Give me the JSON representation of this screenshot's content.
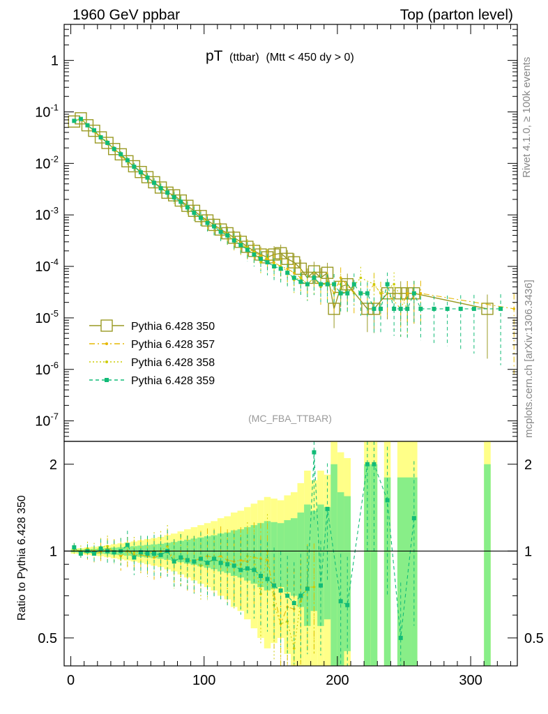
{
  "header": {
    "left": "1960 GeV ppbar",
    "right": "Top (parton level)"
  },
  "side_labels": {
    "rivet": "Rivet 4.1.0, ≥ 100k events",
    "source": "mcplots.cern.ch [arXiv:1306.3436]"
  },
  "colors": {
    "s350": "#999922",
    "s357": "#e6b800",
    "s358": "#cccc00",
    "s359": "#11bb77",
    "band_yellow": "#ffff88",
    "band_green": "#88ee88"
  },
  "chart_data": [
    {
      "type": "line",
      "title": "pT",
      "title_sub": "(ttbar)",
      "title_extra": "(Mtt < 450 dy > 0)",
      "watermark": "(MC_FBA_TTBAR)",
      "yscale": "log",
      "ylim": [
        4e-08,
        5
      ],
      "xlim": [
        -5,
        335
      ],
      "ytick_labels": [
        {
          "value": 1,
          "label": "1"
        },
        {
          "value": 0.1,
          "label": "10^-1"
        },
        {
          "value": 0.01,
          "label": "10^-2"
        },
        {
          "value": 0.001,
          "label": "10^-3"
        },
        {
          "value": 0.0001,
          "label": "10^-4"
        },
        {
          "value": 1e-05,
          "label": "10^-5"
        },
        {
          "value": 1e-06,
          "label": "10^-6"
        },
        {
          "value": 1e-07,
          "label": "10^-7"
        }
      ],
      "legend_position": "bottom-left",
      "series": [
        {
          "name": "Pythia 6.428 350",
          "key": "s350",
          "marker": "open-square",
          "x": [
            2.5,
            7.5,
            12.5,
            17.5,
            22.5,
            27.5,
            32.5,
            37.5,
            42.5,
            47.5,
            52.5,
            57.5,
            62.5,
            67.5,
            72.5,
            77.5,
            82.5,
            87.5,
            92.5,
            97.5,
            102.5,
            107.5,
            112.5,
            117.5,
            122.5,
            127.5,
            132.5,
            137.5,
            142.5,
            147.5,
            152.5,
            157.5,
            162.5,
            167.5,
            172.5,
            177.5,
            182.5,
            187.5,
            192.5,
            197.5,
            202.5,
            207.5,
            222.5,
            227.5,
            237.5,
            247.5,
            252.5,
            257.5,
            312.5
          ],
          "y": [
            0.065,
            0.075,
            0.055,
            0.043,
            0.032,
            0.025,
            0.019,
            0.015,
            0.011,
            0.0088,
            0.0068,
            0.0054,
            0.0043,
            0.0034,
            0.0027,
            0.0024,
            0.0019,
            0.0015,
            0.0012,
            0.00095,
            0.00078,
            0.00064,
            0.00052,
            0.00044,
            0.00036,
            0.0003,
            0.00024,
            0.0002,
            0.00017,
            0.00015,
            0.00017,
            0.00018,
            0.00014,
            0.00012,
            9e-05,
            6e-05,
            8e-05,
            6e-05,
            7.5e-05,
            1.5e-05,
            4e-05,
            4.5e-05,
            1.5e-05,
            1.5e-05,
            3e-05,
            3e-05,
            3e-05,
            3e-05,
            1.5e-05
          ]
        },
        {
          "name": "Pythia 6.428 357",
          "key": "s357",
          "marker": "dot",
          "x": [
            2.5,
            7.5,
            12.5,
            17.5,
            22.5,
            27.5,
            32.5,
            37.5,
            42.5,
            47.5,
            52.5,
            57.5,
            62.5,
            67.5,
            72.5,
            77.5,
            82.5,
            87.5,
            92.5,
            97.5,
            102.5,
            107.5,
            112.5,
            117.5,
            122.5,
            127.5,
            132.5,
            137.5,
            142.5,
            147.5,
            152.5,
            157.5,
            162.5,
            167.5,
            172.5,
            177.5,
            182.5,
            187.5,
            192.5,
            197.5,
            202.5,
            212.5,
            222.5,
            227.5,
            232.5,
            237.5,
            247.5,
            252.5,
            257.5,
            262.5,
            332.5
          ],
          "y": [
            0.068,
            0.072,
            0.054,
            0.042,
            0.031,
            0.025,
            0.019,
            0.014,
            0.011,
            0.0085,
            0.0066,
            0.0052,
            0.0041,
            0.0033,
            0.0027,
            0.0022,
            0.0018,
            0.0014,
            0.0011,
            0.0009,
            0.00075,
            0.00061,
            0.0005,
            0.00041,
            0.00033,
            0.00028,
            0.00022,
            0.00019,
            0.00016,
            0.00014,
            0.00012,
            0.0001,
            9e-05,
            7.5e-05,
            6e-05,
            4.5e-05,
            6e-05,
            4e-05,
            5e-05,
            3e-05,
            6e-05,
            3e-05,
            3e-05,
            4.5e-05,
            3e-05,
            3e-05,
            1.5e-05,
            3e-05,
            3e-05,
            3e-05,
            1.5e-05
          ]
        },
        {
          "name": "Pythia 6.428 358",
          "key": "s358",
          "marker": "dot",
          "x": [
            2.5,
            7.5,
            12.5,
            17.5,
            22.5,
            27.5,
            32.5,
            37.5,
            42.5,
            47.5,
            52.5,
            57.5,
            62.5,
            67.5,
            72.5,
            77.5,
            82.5,
            87.5,
            92.5,
            97.5,
            102.5,
            107.5,
            112.5,
            117.5,
            122.5,
            127.5,
            132.5,
            137.5,
            142.5,
            147.5,
            152.5,
            157.5,
            162.5,
            167.5,
            172.5,
            177.5,
            182.5,
            187.5,
            192.5,
            202.5,
            207.5,
            217.5,
            227.5,
            232.5,
            242.5,
            252.5
          ],
          "y": [
            0.066,
            0.074,
            0.056,
            0.043,
            0.033,
            0.026,
            0.019,
            0.015,
            0.011,
            0.0087,
            0.0067,
            0.0053,
            0.0043,
            0.0034,
            0.0028,
            0.0022,
            0.0018,
            0.0014,
            0.0011,
            0.00085,
            0.0007,
            0.0006,
            0.00048,
            0.0004,
            0.00032,
            0.00027,
            0.00023,
            0.00019,
            0.00012,
            0.00015,
            0.00011,
            0.0001,
            8e-05,
            5.5e-05,
            6e-05,
            4.5e-05,
            6e-05,
            4.5e-05,
            4.5e-05,
            4.5e-05,
            3e-05,
            6e-05,
            4.5e-05,
            3e-05,
            4.5e-05,
            1.5e-05
          ]
        },
        {
          "name": "Pythia 6.428 359",
          "key": "s359",
          "marker": "filled-square",
          "x": [
            2.5,
            7.5,
            12.5,
            17.5,
            22.5,
            27.5,
            32.5,
            37.5,
            42.5,
            47.5,
            52.5,
            57.5,
            62.5,
            67.5,
            72.5,
            77.5,
            82.5,
            87.5,
            92.5,
            97.5,
            102.5,
            107.5,
            112.5,
            117.5,
            122.5,
            127.5,
            132.5,
            137.5,
            142.5,
            147.5,
            152.5,
            157.5,
            162.5,
            167.5,
            172.5,
            177.5,
            182.5,
            187.5,
            192.5,
            197.5,
            202.5,
            207.5,
            212.5,
            217.5,
            222.5,
            227.5,
            232.5,
            237.5,
            242.5,
            247.5,
            252.5,
            257.5,
            262.5,
            272.5,
            282.5,
            292.5,
            302.5,
            322.5
          ],
          "y": [
            0.067,
            0.073,
            0.055,
            0.044,
            0.032,
            0.025,
            0.019,
            0.015,
            0.0115,
            0.0086,
            0.0067,
            0.0053,
            0.0042,
            0.0033,
            0.0027,
            0.0022,
            0.0018,
            0.0014,
            0.0011,
            0.00088,
            0.0007,
            0.0006,
            0.00047,
            0.0004,
            0.00032,
            0.00026,
            0.00021,
            0.00017,
            0.00014,
            0.00012,
            0.0001,
            9e-05,
            7.5e-05,
            6e-05,
            5e-05,
            4.5e-05,
            6e-05,
            4.5e-05,
            4.5e-05,
            4.5e-05,
            3e-05,
            3e-05,
            4.5e-05,
            3e-05,
            3e-05,
            1.5e-05,
            1.5e-05,
            4.5e-05,
            1.5e-05,
            1.5e-05,
            1.5e-05,
            3e-05,
            1.5e-05,
            1.5e-05,
            1.5e-05,
            1.5e-05,
            1.5e-05,
            1.5e-05
          ]
        }
      ]
    },
    {
      "type": "line",
      "ylabel": "Ratio to Pythia 6.428 350",
      "xlim": [
        -5,
        335
      ],
      "ylim": [
        0.4,
        2.4
      ],
      "yscale": "log",
      "xticks": [
        0,
        100,
        200,
        300
      ],
      "yticks": [
        0.5,
        1,
        2
      ],
      "reference_line": 1,
      "band_x": [
        2.5,
        7.5,
        12.5,
        17.5,
        22.5,
        27.5,
        32.5,
        37.5,
        42.5,
        47.5,
        52.5,
        57.5,
        62.5,
        67.5,
        72.5,
        77.5,
        82.5,
        87.5,
        92.5,
        97.5,
        102.5,
        107.5,
        112.5,
        117.5,
        122.5,
        127.5,
        132.5,
        137.5,
        142.5,
        147.5,
        152.5,
        157.5,
        162.5,
        167.5,
        172.5,
        177.5,
        182.5,
        187.5,
        192.5,
        197.5,
        202.5,
        207.5,
        222.5,
        227.5,
        237.5,
        247.5,
        252.5,
        257.5,
        312.5
      ],
      "band_rel": [
        0.01,
        0.012,
        0.015,
        0.018,
        0.02,
        0.024,
        0.028,
        0.032,
        0.036,
        0.04,
        0.045,
        0.05,
        0.055,
        0.06,
        0.068,
        0.075,
        0.085,
        0.095,
        0.105,
        0.115,
        0.125,
        0.135,
        0.15,
        0.16,
        0.18,
        0.19,
        0.21,
        0.23,
        0.25,
        0.27,
        0.26,
        0.25,
        0.28,
        0.3,
        0.36,
        0.45,
        0.38,
        0.45,
        0.42,
        1.0,
        0.6,
        0.55,
        1.0,
        1.0,
        0.8,
        0.8,
        0.8,
        0.8,
        1.0
      ],
      "series": [
        {
          "name": "Pythia 6.428 357",
          "key": "s357",
          "x": [
            2.5,
            7.5,
            12.5,
            17.5,
            22.5,
            27.5,
            32.5,
            37.5,
            42.5,
            47.5,
            52.5,
            57.5,
            62.5,
            67.5,
            72.5,
            77.5,
            82.5,
            87.5,
            92.5,
            97.5,
            102.5,
            107.5,
            112.5,
            117.5,
            122.5,
            127.5,
            132.5,
            137.5,
            142.5,
            147.5,
            152.5,
            157.5,
            162.5,
            167.5,
            172.5,
            177.5,
            182.5
          ],
          "y": [
            1.03,
            0.98,
            0.99,
            0.98,
            0.99,
            1.02,
            1.0,
            0.96,
            1.0,
            0.97,
            0.97,
            0.96,
            0.95,
            0.97,
            1.0,
            0.92,
            0.95,
            0.93,
            0.92,
            0.95,
            0.96,
            0.95,
            0.96,
            0.93,
            0.92,
            0.93,
            0.92,
            0.95,
            0.94,
            0.93,
            0.71,
            0.56,
            0.64,
            0.63,
            0.67,
            0.75,
            0.75
          ]
        },
        {
          "name": "Pythia 6.428 358",
          "key": "s358",
          "x": [
            2.5,
            7.5,
            12.5,
            17.5,
            22.5,
            27.5,
            32.5,
            37.5,
            42.5,
            47.5,
            52.5,
            57.5,
            62.5,
            67.5,
            72.5,
            77.5,
            82.5,
            87.5,
            92.5,
            97.5,
            102.5,
            107.5,
            112.5,
            117.5,
            122.5,
            127.5,
            132.5,
            137.5,
            142.5,
            147.5,
            152.5,
            157.5,
            162.5,
            167.5,
            172.5,
            177.5,
            182.5
          ],
          "y": [
            1.01,
            1.0,
            1.02,
            1.0,
            1.03,
            1.04,
            1.0,
            1.0,
            1.0,
            0.99,
            0.99,
            0.98,
            1.0,
            1.0,
            1.04,
            0.92,
            0.95,
            0.93,
            0.92,
            0.89,
            0.9,
            0.94,
            0.92,
            0.91,
            0.89,
            0.9,
            0.96,
            0.95,
            0.71,
            1.0,
            0.65,
            0.56,
            0.57,
            0.46,
            0.67,
            0.75,
            0.75
          ]
        },
        {
          "name": "Pythia 6.428 359",
          "key": "s359",
          "x": [
            2.5,
            7.5,
            12.5,
            17.5,
            22.5,
            27.5,
            32.5,
            37.5,
            42.5,
            47.5,
            52.5,
            57.5,
            62.5,
            67.5,
            72.5,
            77.5,
            82.5,
            87.5,
            92.5,
            97.5,
            102.5,
            107.5,
            112.5,
            117.5,
            122.5,
            127.5,
            132.5,
            137.5,
            142.5,
            147.5,
            152.5,
            157.5,
            162.5,
            167.5,
            172.5,
            177.5,
            182.5,
            187.5,
            192.5,
            202.5,
            207.5,
            222.5,
            227.5,
            237.5,
            247.5,
            257.5
          ],
          "y": [
            1.03,
            0.98,
            1.0,
            0.98,
            1.02,
            1.0,
            0.99,
            1.0,
            1.05,
            0.95,
            0.99,
            0.98,
            0.98,
            0.97,
            1.0,
            0.92,
            0.95,
            0.93,
            0.92,
            0.94,
            0.91,
            0.94,
            0.91,
            0.9,
            0.89,
            0.86,
            0.87,
            0.86,
            0.82,
            0.8,
            0.76,
            0.73,
            0.7,
            0.66,
            0.7,
            0.74,
            2.2,
            0.76,
            1.4,
            0.67,
            0.65,
            2.0,
            2.0,
            1.5,
            0.5,
            1.3
          ]
        }
      ]
    }
  ]
}
